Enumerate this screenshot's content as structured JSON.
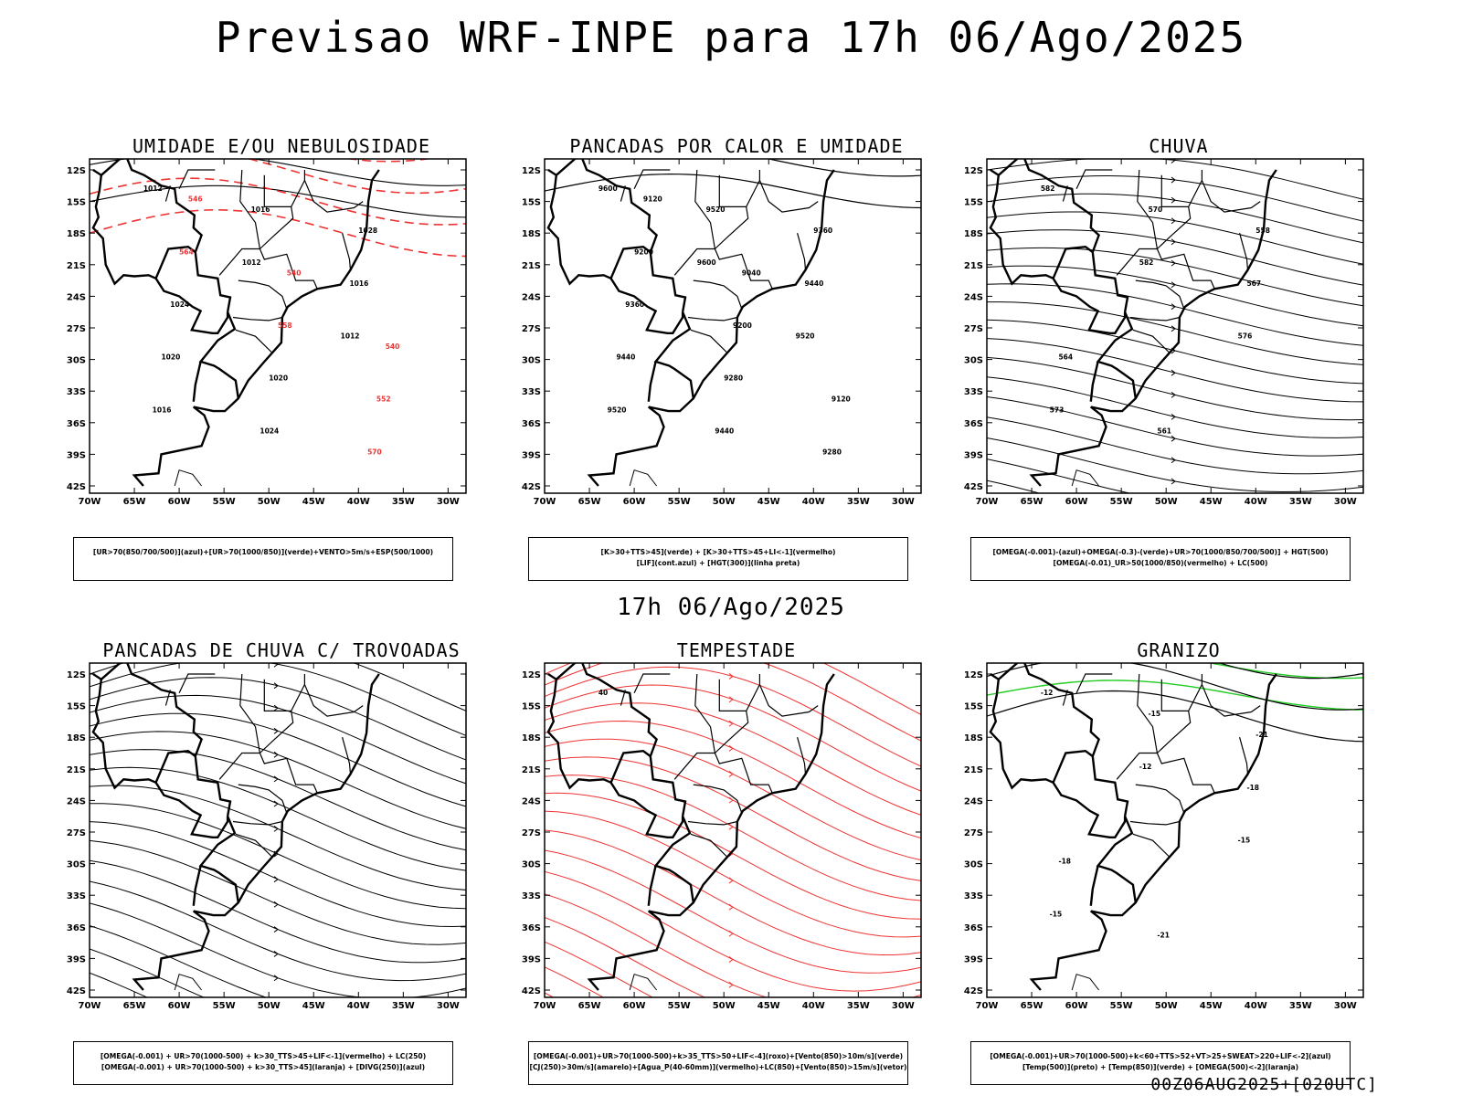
{
  "main_title": "Previsao WRF-INPE  para 17h 06/Ago/2025",
  "mid_title": "17h 06/Ago/2025",
  "footer": "00Z06AUG2025+[020UTC]",
  "lat_ticks": [
    "12S",
    "15S",
    "18S",
    "21S",
    "24S",
    "27S",
    "30S",
    "33S",
    "36S",
    "39S",
    "42S"
  ],
  "lon_ticks": [
    "70W",
    "65W",
    "60W",
    "55W",
    "50W",
    "45W",
    "40W",
    "35W",
    "30W"
  ],
  "colors": {
    "green": "#22cc22",
    "red": "#ee3333",
    "blue": "#3344ee",
    "lavender": "#a9a3ea",
    "darkteal": "#154a48",
    "orange": "#ee8822",
    "yellow": "#e6d832",
    "contour": "#000000"
  },
  "panels": [
    {
      "id": "umidade",
      "title": "UMIDADE E/OU NEBULOSIDADE",
      "legend_lines": [
        "[UR>70(850/700/500)](azul)+[UR>70(1000/850)](verde)+VENTO>5m/s+ESP(500/1000)"
      ],
      "contour_labels": [
        "1012",
        "1012",
        "1012",
        "1016",
        "1016",
        "1016",
        "1020",
        "1024",
        "1028",
        "1024",
        "1020",
        "570",
        "564",
        "558",
        "552",
        "546",
        "540",
        "540"
      ]
    },
    {
      "id": "pancadas-calor",
      "title": "PANCADAS POR CALOR E UMIDADE",
      "legend_lines": [
        "[K>30+TTS>45](verde)  +  [K>30+TTS>45+LI<-1](vermelho)",
        "[LIF](cont.azul)  +  [HGT(300)](linha preta)"
      ],
      "contour_labels": [
        "9600",
        "9600",
        "9520",
        "9520",
        "9520",
        "9440",
        "9440",
        "9440",
        "9360",
        "9360",
        "9280",
        "9280",
        "9200",
        "9200",
        "9120",
        "9120",
        "9040"
      ]
    },
    {
      "id": "chuva",
      "title": "CHUVA",
      "legend_lines": [
        "[OMEGA(-0.001)-(azul)+OMEGA(-0.3)-(verde)+UR>70(1000/850/700/500)]  +  HGT(500)",
        "[OMEGA(-0.01)_UR>50(1000/850)(vermelho)  +  LC(500)"
      ],
      "contour_labels": [
        "582",
        "582",
        "576",
        "573",
        "570",
        "567",
        "564",
        "561",
        "558"
      ]
    },
    {
      "id": "trovoadas",
      "title": "PANCADAS DE CHUVA C/ TROVOADAS",
      "legend_lines": [
        "[OMEGA(-0.001)  +  UR>70(1000-500)  +  k>30_TTS>45+LIF<-1](vermelho)  +  LC(250)",
        "[OMEGA(-0.001)  +  UR>70(1000-500)  +  k>30_TTS>45](laranja)  +  [DIVG(250)](azul)"
      ],
      "contour_labels": []
    },
    {
      "id": "tempestade",
      "title": "TEMPESTADE",
      "legend_lines": [
        "[OMEGA(-0.001)+UR>70(1000-500)+k>35_TTS>50+LIF<-4](roxo)+[Vento(850)>10m/s](verde)",
        "[CJ(250)>30m/s](amarelo)+[Agua_P(40-60mm)](vermelho)+LC(850)+[Vento(850)>15m/s](vetor)"
      ],
      "contour_labels": [
        "40"
      ]
    },
    {
      "id": "granizo",
      "title": "GRANIZO",
      "legend_lines": [
        "[OMEGA(-0.001)+UR>70(1000-500)+k<60+TTS>52+VT>25+SWEAT>220+LIF<-2](azul)",
        "[Temp(500)](preto)  +  [Temp(850)](verde)  +  [OMEGA(500)<-2](laranja)"
      ],
      "contour_labels": [
        "-12",
        "-12",
        "-15",
        "-15",
        "-15",
        "-18",
        "-18",
        "-21",
        "-21"
      ]
    }
  ]
}
